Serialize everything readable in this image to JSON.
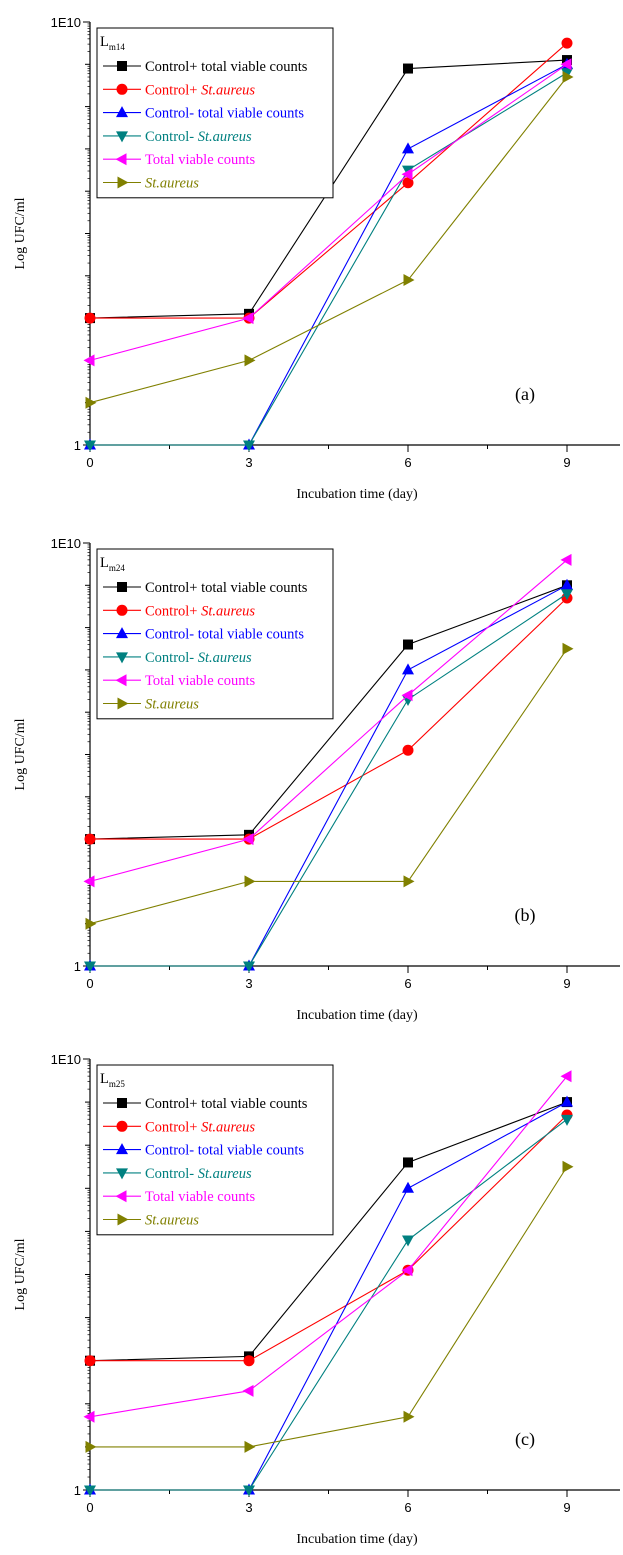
{
  "chart_data": [
    {
      "type": "line",
      "panel_label": "(a)",
      "legend_title": {
        "main": "L",
        "sub": "m14"
      },
      "xlabel": "Incubation time (day)",
      "ylabel": "Log UFC/ml",
      "x": [
        0,
        3,
        6,
        9
      ],
      "x_ticks": [
        "0",
        "3",
        "6",
        "9"
      ],
      "y_ticks": [
        "1",
        "1E10"
      ],
      "y_scale": "log",
      "xlim": [
        0,
        10
      ],
      "ylim": [
        1,
        10000000000.0
      ],
      "legend_position": "top-left",
      "series": [
        {
          "name": "Control+ total viable counts",
          "values": [
            1000,
            1260,
            794000000,
            1260000000.0
          ],
          "color": "#000000",
          "marker": "square"
        },
        {
          "name": {
            "prefix": "Control+ ",
            "italic": "St.aureus"
          },
          "values": [
            1000,
            1000,
            1580000.0,
            3160000000.0
          ],
          "color": "#ff0000",
          "marker": "circle"
        },
        {
          "name": "Control- total viable counts",
          "values": [
            1,
            1,
            10000000.0,
            1000000000.0
          ],
          "color": "#0000ff",
          "marker": "triangle-up"
        },
        {
          "name": {
            "prefix": "Control- ",
            "italic": "St.aureus"
          },
          "values": [
            1,
            1,
            3160000.0,
            631000000.0
          ],
          "color": "#008080",
          "marker": "triangle-down"
        },
        {
          "name": "Total viable counts",
          "values": [
            100,
            1000,
            2510000.0,
            1000000000.0
          ],
          "color": "#ff00ff",
          "marker": "triangle-left"
        },
        {
          "name": {
            "prefix": "",
            "italic": "St.aureus"
          },
          "values": [
            10,
            100,
            7940,
            501000000.0
          ],
          "color": "#808000",
          "marker": "triangle-right"
        }
      ]
    },
    {
      "type": "line",
      "panel_label": "(b)",
      "legend_title": {
        "main": "L",
        "sub": "m24"
      },
      "xlabel": "Incubation time (day)",
      "ylabel": "Log UFC/ml",
      "x": [
        0,
        3,
        6,
        9
      ],
      "x_ticks": [
        "0",
        "3",
        "6",
        "9"
      ],
      "y_ticks": [
        "1",
        "1E10"
      ],
      "y_scale": "log",
      "xlim": [
        0,
        10
      ],
      "ylim": [
        1,
        10000000000.0
      ],
      "legend_position": "top-left",
      "series": [
        {
          "name": "Control+ total viable counts",
          "values": [
            1000,
            1260,
            39800000.0,
            1000000000.0
          ],
          "color": "#000000",
          "marker": "square"
        },
        {
          "name": {
            "prefix": "Control+ ",
            "italic": "St.aureus"
          },
          "values": [
            1000,
            1000,
            125900,
            501000000.0
          ],
          "color": "#ff0000",
          "marker": "circle"
        },
        {
          "name": "Control- total viable counts",
          "values": [
            1,
            1,
            10000000.0,
            1000000000.0
          ],
          "color": "#0000ff",
          "marker": "triangle-up"
        },
        {
          "name": {
            "prefix": "Control- ",
            "italic": "St.aureus"
          },
          "values": [
            1,
            1,
            2000000.0,
            631000000.0
          ],
          "color": "#008080",
          "marker": "triangle-down"
        },
        {
          "name": "Total viable counts",
          "values": [
            100,
            1000,
            2510000.0,
            3980000000.0
          ],
          "color": "#ff00ff",
          "marker": "triangle-left"
        },
        {
          "name": {
            "prefix": "",
            "italic": "St.aureus"
          },
          "values": [
            10,
            100,
            100,
            31600000.0
          ],
          "color": "#808000",
          "marker": "triangle-right"
        }
      ]
    },
    {
      "type": "line",
      "panel_label": "(c)",
      "legend_title": {
        "main": "L",
        "sub": "m25"
      },
      "xlabel": "Incubation time (day)",
      "ylabel": "Log UFC/ml",
      "x": [
        0,
        3,
        6,
        9
      ],
      "x_ticks": [
        "0",
        "3",
        "6",
        "9"
      ],
      "y_ticks": [
        "1",
        "1E10"
      ],
      "y_scale": "log",
      "xlim": [
        0,
        10
      ],
      "ylim": [
        1,
        10000000000.0
      ],
      "legend_position": "top-left",
      "series": [
        {
          "name": "Control+ total viable counts",
          "values": [
            1000,
            1260,
            39800000.0,
            1000000000.0
          ],
          "color": "#000000",
          "marker": "square"
        },
        {
          "name": {
            "prefix": "Control+ ",
            "italic": "St.aureus"
          },
          "values": [
            1000,
            1000,
            125900,
            501000000.0
          ],
          "color": "#ff0000",
          "marker": "circle"
        },
        {
          "name": "Control- total viable counts",
          "values": [
            1,
            1,
            10000000.0,
            1000000000.0
          ],
          "color": "#0000ff",
          "marker": "triangle-up"
        },
        {
          "name": {
            "prefix": "Control- ",
            "italic": "St.aureus"
          },
          "values": [
            1,
            1,
            631000,
            398000000.0
          ],
          "color": "#008080",
          "marker": "triangle-down"
        },
        {
          "name": "Total viable counts",
          "values": [
            50,
            200,
            125900,
            3980000000.0
          ],
          "color": "#ff00ff",
          "marker": "triangle-left"
        },
        {
          "name": {
            "prefix": "",
            "italic": "St.aureus"
          },
          "values": [
            10,
            10,
            50,
            31600000.0
          ],
          "color": "#808000",
          "marker": "triangle-right"
        }
      ]
    }
  ]
}
